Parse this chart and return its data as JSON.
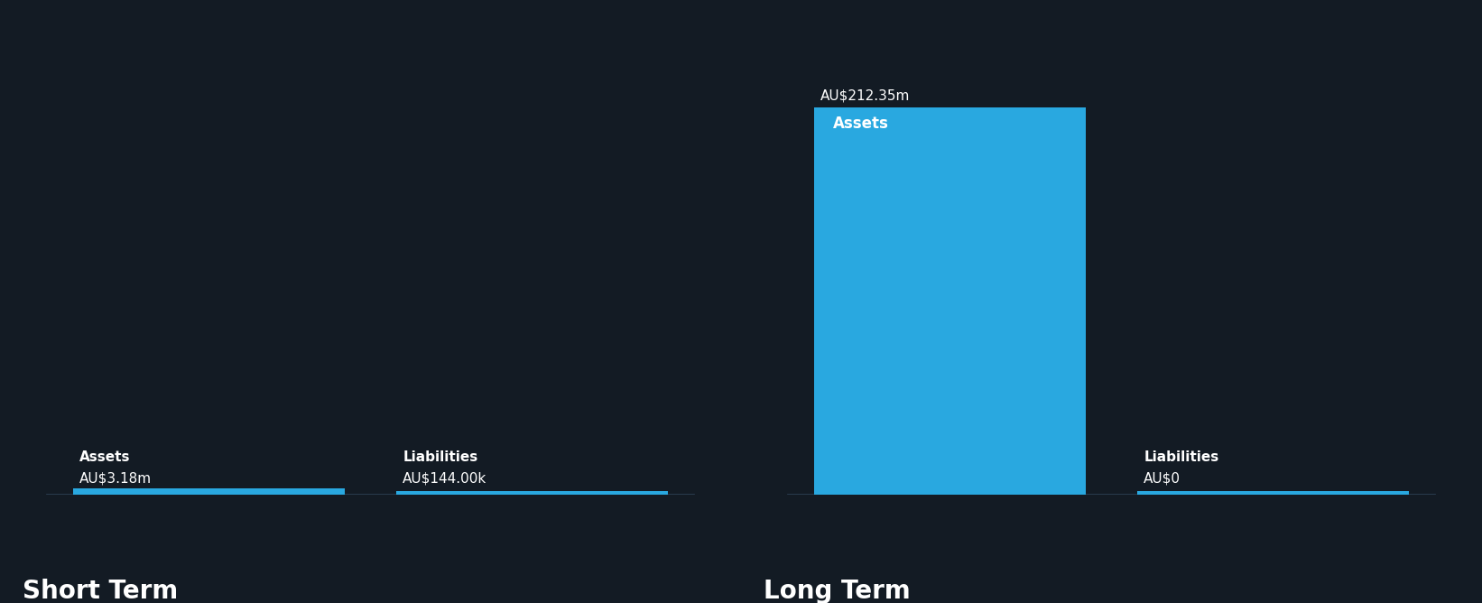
{
  "background_color": "#131b24",
  "bar_color": "#29a8e0",
  "baseline_color": "#2a3a4a",
  "text_color": "#ffffff",
  "sections": [
    {
      "label": "Short Term",
      "bars": [
        {
          "category": "Assets",
          "value": 3.18,
          "display": "AU$3.18m"
        },
        {
          "category": "Liabilities",
          "value": 0.144,
          "display": "AU$144.00k"
        }
      ]
    },
    {
      "label": "Long Term",
      "bars": [
        {
          "category": "Assets",
          "value": 212.35,
          "display": "AU$212.35m"
        },
        {
          "category": "Liabilities",
          "value": 0.0,
          "display": "AU$0"
        }
      ]
    }
  ],
  "y_max": 212.35,
  "section_label_fontsize": 20,
  "cat_label_fontsize": 11,
  "value_label_fontsize": 11,
  "inside_label_fontsize": 12,
  "fig_width": 16.42,
  "fig_height": 6.68,
  "dpi": 100
}
